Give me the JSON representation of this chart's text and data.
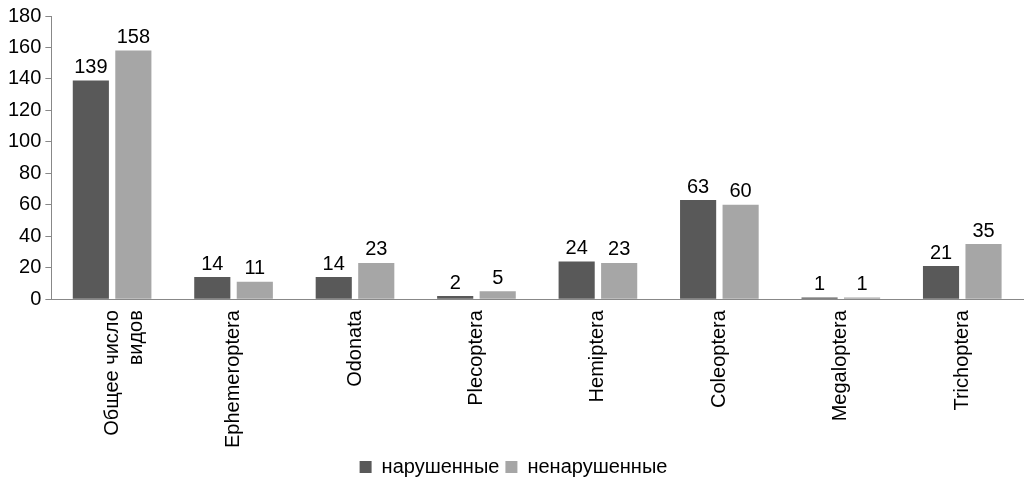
{
  "chart_data": {
    "type": "bar",
    "categories": [
      "Общее число видов",
      "Ephemeroptera",
      "Odonata",
      "Plecoptera",
      "Hemiptera",
      "Coleoptera",
      "Megaloptera",
      "Trichoptera"
    ],
    "series": [
      {
        "name": "нарушенные",
        "color": "#595959",
        "values": [
          139,
          14,
          14,
          2,
          24,
          63,
          1,
          21
        ]
      },
      {
        "name": "ненарушенные",
        "color": "#a6a6a6",
        "values": [
          158,
          11,
          23,
          5,
          23,
          60,
          1,
          35
        ]
      }
    ],
    "ylim": [
      0,
      180
    ],
    "yticks": [
      0,
      20,
      40,
      60,
      80,
      100,
      120,
      140,
      160,
      180
    ],
    "grid": false,
    "legend": "bottom",
    "data_labels": true
  }
}
